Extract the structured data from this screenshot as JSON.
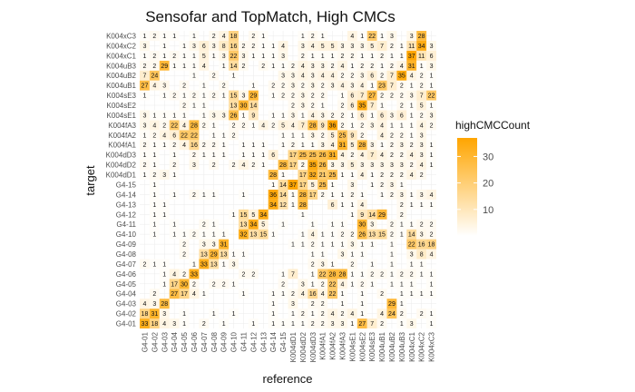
{
  "chart_data": {
    "type": "heatmap",
    "title": "Sensofar and TopMatch, High CMCs",
    "xlabel": "reference",
    "ylabel": "target",
    "categories": [
      "G4-01",
      "G4-02",
      "G4-03",
      "G4-04",
      "G4-05",
      "G4-06",
      "G4-07",
      "G4-08",
      "G4-09",
      "G4-10",
      "G4-11",
      "G4-12",
      "G4-13",
      "G4-14",
      "G4-15",
      "K004dD1",
      "K004dD2",
      "K004dD3",
      "K004fA1",
      "K004fA2",
      "K004fA3",
      "K004sE1",
      "K004sE2",
      "K004sE3",
      "K004uB1",
      "K004uB2",
      "K004uB3",
      "K004xC1",
      "K004xC2",
      "K004xC3"
    ],
    "legend": {
      "title": "highCMCCount",
      "ticks": [
        10,
        20,
        30
      ],
      "range": [
        0,
        37
      ],
      "low_color": "#ffffff",
      "high_color": "#ffa500",
      "placement": "right"
    },
    "grid": true,
    "matrix": [
      [
        33,
        18,
        4,
        3,
        1,
        "",
        2,
        "",
        1,
        "",
        "",
        1,
        "",
        1,
        1,
        1,
        1,
        2,
        2,
        3,
        3,
        1,
        27,
        7,
        2,
        "",
        1,
        3,
        "",
        1
      ],
      [
        18,
        31,
        3,
        "",
        1,
        "",
        "",
        1,
        "",
        1,
        "",
        "",
        "",
        1,
        "",
        1,
        2,
        1,
        2,
        4,
        2,
        4,
        1,
        "",
        4,
        24,
        2,
        "",
        2,
        1
      ],
      [
        4,
        3,
        28,
        "",
        "",
        "",
        "",
        "",
        "",
        "",
        "",
        "",
        "",
        1,
        "",
        3,
        "",
        2,
        2,
        "",
        1,
        "",
        1,
        "",
        "",
        29,
        1,
        "",
        "",
        ""
      ],
      [
        "",
        2,
        "",
        27,
        17,
        4,
        1,
        "",
        "",
        "",
        1,
        "",
        "",
        1,
        1,
        2,
        4,
        16,
        4,
        22,
        1,
        "",
        1,
        "",
        2,
        "",
        1,
        1,
        1,
        1
      ],
      [
        "",
        "",
        1,
        17,
        30,
        2,
        "",
        2,
        2,
        1,
        "",
        "",
        "",
        "",
        2,
        "",
        3,
        1,
        2,
        22,
        4,
        1,
        2,
        1,
        "",
        1,
        1,
        1,
        "",
        1
      ],
      [
        "",
        "",
        1,
        4,
        2,
        33,
        "",
        "",
        "",
        "",
        2,
        2,
        "",
        "",
        1,
        7,
        "",
        1,
        22,
        28,
        28,
        1,
        1,
        2,
        2,
        1,
        2,
        2,
        1,
        1
      ],
      [
        2,
        1,
        1,
        "",
        "",
        1,
        33,
        13,
        1,
        3,
        "",
        "",
        "",
        "",
        "",
        "",
        "",
        2,
        3,
        1,
        "",
        2,
        "",
        1,
        "",
        1,
        "",
        1,
        1,
        ""
      ],
      [
        "",
        "",
        "",
        "",
        2,
        "",
        13,
        29,
        13,
        1,
        1,
        "",
        "",
        "",
        "",
        "",
        "",
        1,
        1,
        "",
        3,
        1,
        1,
        "",
        "",
        1,
        "",
        3,
        8,
        4
      ],
      [
        "",
        "",
        "",
        "",
        2,
        "",
        3,
        3,
        31,
        "",
        "",
        "",
        "",
        "",
        "",
        1,
        1,
        2,
        1,
        1,
        1,
        3,
        1,
        1,
        "",
        1,
        "",
        22,
        16,
        18
      ],
      [
        "",
        1,
        "",
        1,
        1,
        2,
        1,
        1,
        1,
        "",
        32,
        13,
        15,
        1,
        "",
        "",
        1,
        4,
        1,
        1,
        2,
        2,
        26,
        13,
        15,
        2,
        1,
        14,
        3,
        2
      ],
      [
        "",
        1,
        "",
        1,
        "",
        "",
        2,
        1,
        "",
        "",
        13,
        34,
        5,
        "",
        1,
        "",
        "",
        1,
        "",
        1,
        1,
        "",
        30,
        3,
        "",
        2,
        1,
        1,
        2,
        2
      ],
      [
        "",
        1,
        1,
        "",
        "",
        "",
        "",
        "",
        "",
        1,
        15,
        5,
        34,
        "",
        "",
        "",
        1,
        "",
        "",
        "",
        "",
        1,
        9,
        14,
        29,
        "",
        2,
        "",
        "",
        ""
      ],
      [
        "",
        1,
        1,
        "",
        "",
        "",
        "",
        "",
        "",
        "",
        "",
        "",
        "",
        34,
        12,
        1,
        28,
        "",
        "",
        6,
        1,
        1,
        4,
        "",
        "",
        "",
        2,
        1,
        1,
        1
      ],
      [
        "",
        1,
        "",
        1,
        "",
        2,
        1,
        1,
        "",
        "",
        1,
        "",
        "",
        36,
        14,
        1,
        28,
        17,
        2,
        1,
        1,
        2,
        1,
        "",
        1,
        2,
        3,
        1,
        3,
        4
      ],
      [
        "",
        1,
        "",
        "",
        "",
        "",
        "",
        "",
        "",
        "",
        "",
        "",
        "",
        1,
        14,
        37,
        17,
        5,
        25,
        1,
        "",
        3,
        "",
        1,
        2,
        3,
        1,
        "",
        "",
        ""
      ],
      [
        1,
        2,
        3,
        1,
        "",
        "",
        "",
        "",
        "",
        "",
        "",
        "",
        "",
        28,
        1,
        "",
        17,
        32,
        21,
        25,
        1,
        1,
        4,
        1,
        2,
        2,
        2,
        4,
        2,
        ""
      ],
      [
        2,
        1,
        "",
        2,
        "",
        3,
        "",
        2,
        "",
        2,
        4,
        2,
        1,
        "",
        28,
        17,
        2,
        35,
        26,
        3,
        3,
        5,
        3,
        3,
        3,
        3,
        3,
        2,
        4,
        1
      ],
      [
        1,
        1,
        "",
        1,
        "",
        2,
        1,
        1,
        1,
        "",
        1,
        1,
        1,
        6,
        "",
        17,
        25,
        25,
        26,
        31,
        4,
        2,
        4,
        7,
        4,
        2,
        2,
        4,
        3,
        1
      ],
      [
        2,
        1,
        1,
        2,
        4,
        16,
        2,
        2,
        1,
        "",
        1,
        1,
        1,
        "",
        1,
        2,
        1,
        1,
        3,
        4,
        31,
        5,
        28,
        3,
        1,
        2,
        3,
        2,
        3,
        1
      ],
      [
        1,
        2,
        4,
        6,
        22,
        22,
        "",
        1,
        1,
        2,
        "",
        "",
        "",
        "",
        1,
        1,
        1,
        3,
        2,
        5,
        25,
        9,
        2,
        "",
        4,
        2,
        2,
        1,
        3,
        ""
      ],
      [
        3,
        4,
        2,
        22,
        4,
        28,
        2,
        1,
        "",
        2,
        2,
        1,
        4,
        2,
        5,
        4,
        7,
        28,
        9,
        36,
        2,
        1,
        2,
        3,
        4,
        1,
        1,
        1,
        4,
        2
      ],
      [
        3,
        1,
        1,
        1,
        1,
        "",
        1,
        3,
        3,
        26,
        1,
        9,
        "",
        1,
        1,
        3,
        1,
        4,
        3,
        2,
        2,
        1,
        6,
        1,
        6,
        3,
        6,
        1,
        2,
        3
      ],
      [
        "",
        "",
        "",
        "",
        2,
        1,
        1,
        "",
        "",
        13,
        30,
        14,
        "",
        "",
        "",
        2,
        3,
        2,
        1,
        "",
        2,
        6,
        35,
        7,
        1,
        "",
        2,
        1,
        5,
        1
      ],
      [
        1,
        "",
        1,
        2,
        1,
        2,
        1,
        2,
        1,
        15,
        3,
        29,
        "",
        1,
        2,
        2,
        3,
        2,
        2,
        "",
        1,
        6,
        7,
        27,
        2,
        2,
        2,
        3,
        7,
        22
      ],
      [
        27,
        4,
        3,
        "",
        2,
        "",
        1,
        "",
        2,
        "",
        "",
        1,
        "",
        2,
        2,
        3,
        2,
        3,
        2,
        3,
        4,
        3,
        4,
        1,
        23,
        7,
        2,
        1,
        2,
        1
      ],
      [
        7,
        24,
        "",
        "",
        "",
        1,
        "",
        2,
        "",
        1,
        "",
        "",
        "",
        "",
        3,
        3,
        4,
        3,
        4,
        4,
        2,
        2,
        3,
        6,
        2,
        7,
        35,
        4,
        2,
        1
      ],
      [
        2,
        2,
        29,
        1,
        1,
        1,
        4,
        "",
        1,
        14,
        2,
        "",
        2,
        1,
        1,
        2,
        4,
        3,
        3,
        2,
        4,
        1,
        2,
        2,
        1,
        2,
        4,
        31,
        1,
        3
      ],
      [
        1,
        2,
        1,
        2,
        1,
        1,
        5,
        1,
        3,
        22,
        3,
        1,
        1,
        1,
        3,
        "",
        2,
        1,
        1,
        1,
        2,
        2,
        1,
        1,
        2,
        1,
        1,
        37,
        11,
        6
      ],
      [
        3,
        "",
        1,
        "",
        1,
        3,
        6,
        3,
        8,
        16,
        2,
        2,
        1,
        1,
        4,
        "",
        3,
        4,
        5,
        5,
        3,
        3,
        3,
        5,
        7,
        2,
        1,
        11,
        34,
        3
      ],
      [
        1,
        2,
        1,
        1,
        "",
        1,
        "",
        2,
        4,
        18,
        "",
        2,
        1,
        "",
        "",
        "",
        1,
        2,
        1,
        "",
        "",
        4,
        1,
        22,
        1,
        3,
        "",
        3,
        28,
        ""
      ]
    ]
  }
}
